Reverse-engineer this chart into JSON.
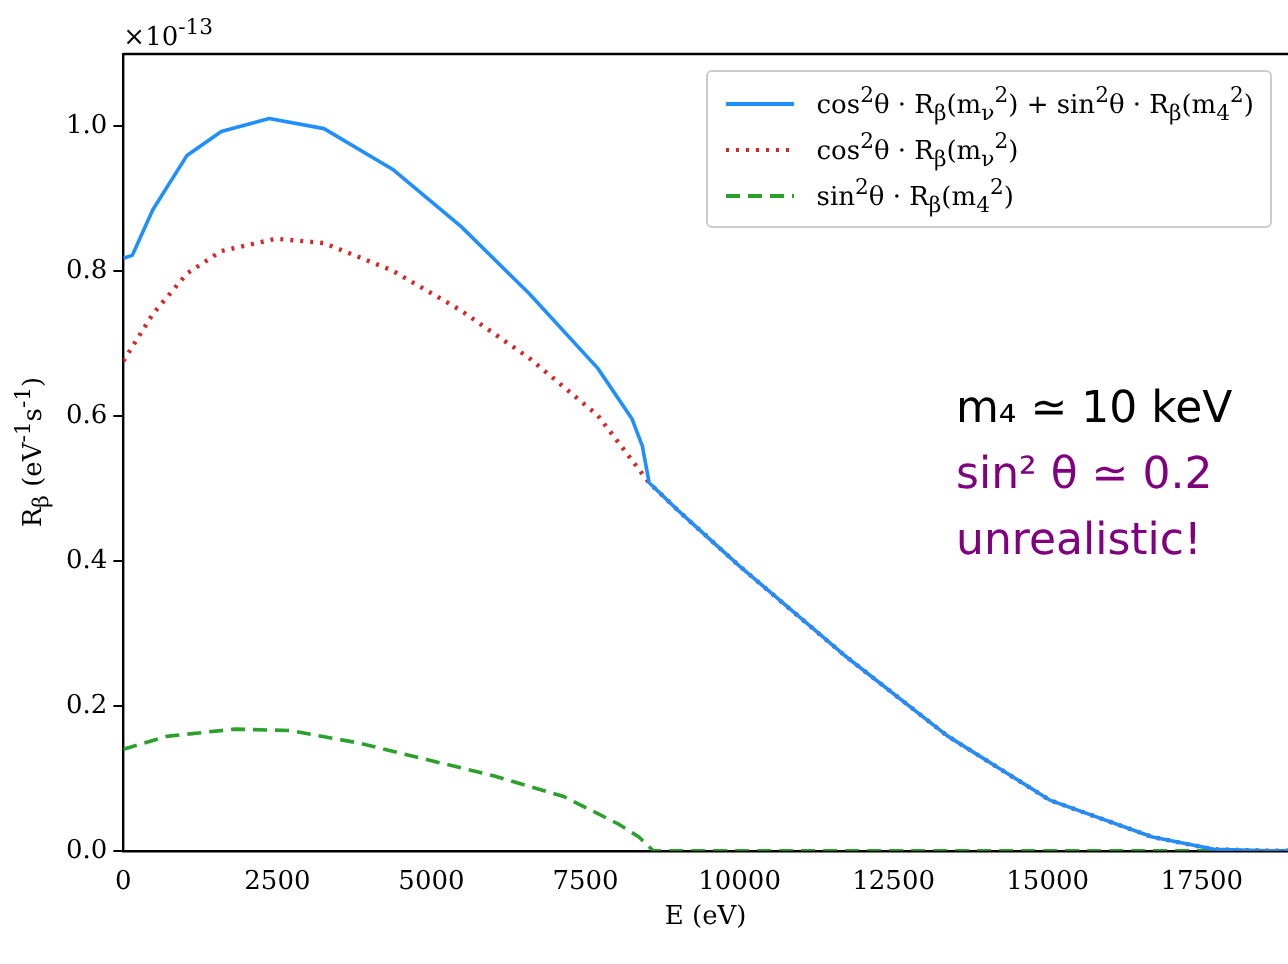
{
  "chart_data": {
    "type": "line",
    "xlabel": "E (eV)",
    "ylabel": "R$_{β}$ (eV$^{-1}$s$^{-1}$)",
    "xlim": [
      0,
      18900
    ],
    "xticks": [
      0,
      2500,
      5000,
      7500,
      10000,
      12500,
      15000,
      17500
    ],
    "ylim": [
      0,
      1.1
    ],
    "yticks": [
      {
        "value": 0,
        "label": "0.0"
      },
      {
        "value": 0.2,
        "label": "0.2"
      },
      {
        "value": 0.4,
        "label": "0.4"
      },
      {
        "value": 0.6,
        "label": "0.6"
      },
      {
        "value": 0.8,
        "label": "0.8"
      },
      {
        "value": 1,
        "label": "1.0"
      }
    ],
    "grid": false,
    "legend": "top right",
    "annotations": [
      "×10$^{-13}$",
      "m₄ ≃ 10 keV",
      "sin² θ ≃ 0.2",
      "unrealistic!"
    ],
    "series": [
      {
        "name": "cos$^{2}$θ · R$_{β}$(m$_{ν}$$^{2}$) + sin$^{2}$θ · R$_{β}$(m$_{4}$$^{2}$)",
        "color": "#1f8fff",
        "line_style": "solid",
        "x": [
          0,
          145,
          478,
          1033,
          1589,
          2367,
          3256,
          4367,
          5478,
          6589,
          7700,
          8256,
          8422,
          8533,
          9000,
          10000,
          11700,
          13367,
          15033,
          16700,
          17700,
          18600,
          18900
        ],
        "values": [
          0.818,
          0.822,
          0.885,
          0.96,
          0.993,
          1.011,
          0.997,
          0.941,
          0.862,
          0.769,
          0.666,
          0.596,
          0.559,
          0.508,
          0.47,
          0.393,
          0.27,
          0.159,
          0.07,
          0.019,
          0.002,
          0,
          0
        ]
      },
      {
        "name": "cos$^{2}$θ · R$_{β}$(m$_{ν}$$^{2}$)",
        "color": "#d62728",
        "line_style": "dotted",
        "x": [
          0,
          478,
          1033,
          1589,
          2478,
          3256,
          4367,
          5478,
          6589,
          7700,
          8533,
          9000,
          10000,
          11700,
          13367,
          15033,
          16700,
          17700,
          18600,
          18900
        ],
        "values": [
          0.676,
          0.741,
          0.797,
          0.828,
          0.845,
          0.839,
          0.801,
          0.746,
          0.68,
          0.601,
          0.508,
          0.47,
          0.393,
          0.27,
          0.159,
          0.07,
          0.019,
          0.002,
          0,
          0
        ]
      },
      {
        "name": "sin$^{2}$θ · R$_{β}$(m$_{4}$$^{2}$)",
        "color": "#2ca02c",
        "line_style": "dashed",
        "x": [
          0,
          700,
          1811,
          2700,
          3811,
          4922,
          6033,
          7144,
          8033,
          8367,
          8600,
          18900
        ],
        "values": [
          0.14,
          0.158,
          0.168,
          0.166,
          0.149,
          0.126,
          0.103,
          0.075,
          0.037,
          0.019,
          0,
          0
        ]
      }
    ]
  }
}
